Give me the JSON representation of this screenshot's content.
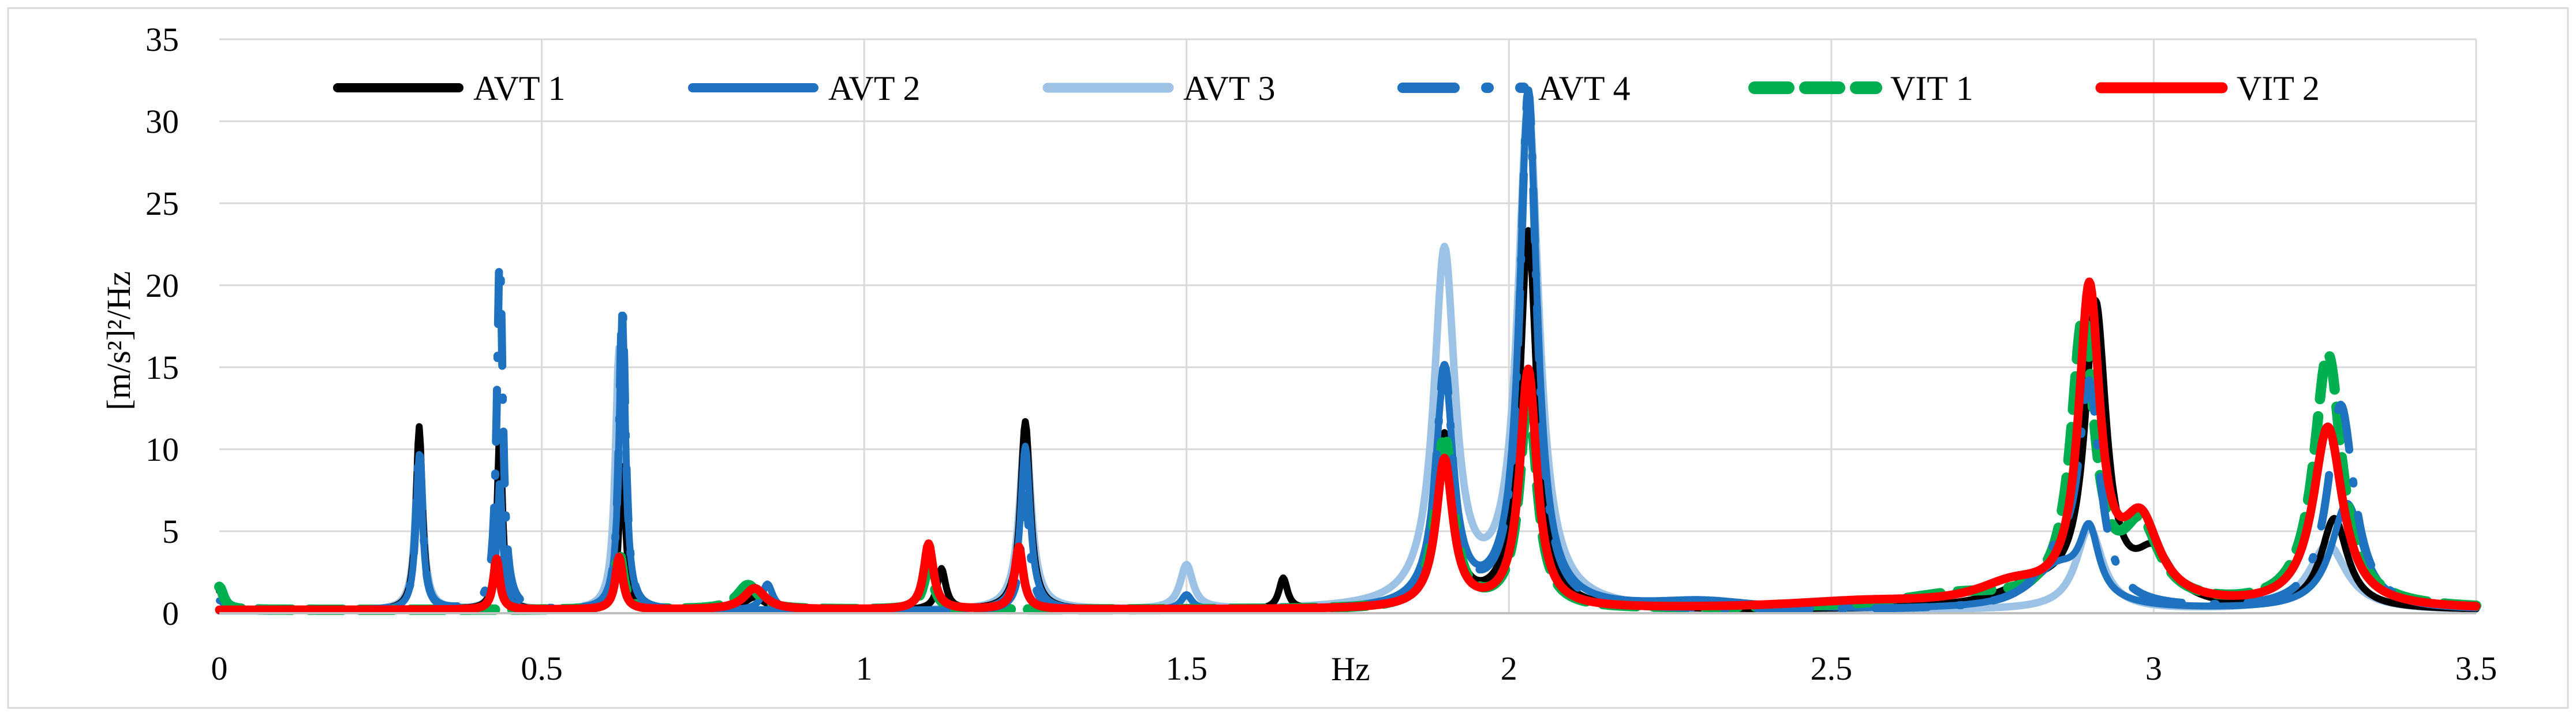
{
  "chart_data": {
    "type": "line",
    "title": "",
    "xlabel": "Hz",
    "ylabel": "[m/s²]²/Hz",
    "xlim": [
      0,
      3.5
    ],
    "ylim": [
      0,
      35
    ],
    "x_ticks": [
      0,
      0.5,
      1,
      1.5,
      2,
      2.5,
      3,
      3.5
    ],
    "x_tick_labels": [
      "0",
      "0.5",
      "1",
      "1.5",
      "2",
      "2.5",
      "3",
      "3.5"
    ],
    "y_ticks": [
      0,
      5,
      10,
      15,
      20,
      25,
      30,
      35
    ],
    "y_tick_labels": [
      "0",
      "5",
      "10",
      "15",
      "20",
      "25",
      "30",
      "35"
    ],
    "grid": true,
    "legend_position": "top",
    "series": [
      {
        "name": "AVT 1",
        "color": "#000000",
        "style": "solid",
        "baseline": 0.15,
        "peaks": [
          [
            0.0,
            1.2,
            0.01
          ],
          [
            0.31,
            11.2,
            0.006
          ],
          [
            0.435,
            11,
            0.005
          ],
          [
            0.625,
            9,
            0.006
          ],
          [
            0.83,
            0.8,
            0.02
          ],
          [
            1.12,
            2.5,
            0.008
          ],
          [
            1.25,
            11.5,
            0.009
          ],
          [
            1.65,
            1.9,
            0.008
          ],
          [
            1.9,
            10.5,
            0.016
          ],
          [
            2.03,
            23,
            0.016
          ],
          [
            2.82,
            1.3,
            0.07
          ],
          [
            2.91,
            18,
            0.02
          ],
          [
            3.0,
            3.0,
            0.035
          ],
          [
            3.28,
            5.5,
            0.025
          ]
        ]
      },
      {
        "name": "AVT 2",
        "color": "#1f72c0",
        "style": "solid",
        "baseline": 0.15,
        "peaks": [
          [
            0.0,
            0.6,
            0.01
          ],
          [
            0.31,
            9.5,
            0.006
          ],
          [
            0.435,
            8,
            0.005
          ],
          [
            0.625,
            18.5,
            0.006
          ],
          [
            0.85,
            1.6,
            0.01
          ],
          [
            1.25,
            10,
            0.009
          ],
          [
            1.5,
            0.9,
            0.01
          ],
          [
            1.9,
            14,
            0.017
          ],
          [
            2.03,
            31,
            0.017
          ],
          [
            2.3,
            0.5,
            0.1
          ],
          [
            2.85,
            2.5,
            0.05
          ],
          [
            2.9,
            4,
            0.018
          ],
          [
            3.3,
            6.5,
            0.03
          ]
        ]
      },
      {
        "name": "AVT 3",
        "color": "#9cc3e6",
        "style": "solid",
        "baseline": 0.15,
        "peaks": [
          [
            0.31,
            10,
            0.007
          ],
          [
            0.435,
            8,
            0.006
          ],
          [
            0.62,
            16,
            0.007
          ],
          [
            1.25,
            11,
            0.011
          ],
          [
            1.5,
            2.7,
            0.012
          ],
          [
            1.9,
            21.5,
            0.02
          ],
          [
            2.03,
            30.5,
            0.02
          ],
          [
            2.9,
            5,
            0.025
          ],
          [
            3.27,
            4,
            0.035
          ]
        ]
      },
      {
        "name": "AVT 4",
        "color": "#1f72c0",
        "style": "dashdot",
        "baseline": 0.15,
        "peaks": [
          [
            0.31,
            10,
            0.006
          ],
          [
            0.435,
            22,
            0.0055
          ],
          [
            0.625,
            18.8,
            0.006
          ],
          [
            1.25,
            7,
            0.008
          ],
          [
            1.9,
            14.5,
            0.016
          ],
          [
            2.03,
            31.5,
            0.016
          ],
          [
            2.85,
            2.5,
            0.04
          ],
          [
            2.9,
            13,
            0.02
          ],
          [
            3.29,
            12.5,
            0.025
          ]
        ]
      },
      {
        "name": "VIT 1",
        "color": "#00b050",
        "style": "dashed",
        "baseline": 0.2,
        "peaks": [
          [
            0.0,
            1.4,
            0.008
          ],
          [
            0.62,
            3.5,
            0.008
          ],
          [
            0.82,
            1.5,
            0.02
          ],
          [
            1.1,
            2.5,
            0.01
          ],
          [
            1.9,
            10.5,
            0.016
          ],
          [
            2.03,
            13,
            0.016
          ],
          [
            2.7,
            0.8,
            0.12
          ],
          [
            2.89,
            17,
            0.022
          ],
          [
            2.98,
            4.5,
            0.035
          ],
          [
            3.27,
            15.5,
            0.026
          ]
        ]
      },
      {
        "name": "VIT 2",
        "color": "#ff0000",
        "style": "solid",
        "baseline": 0.2,
        "peaks": [
          [
            0.43,
            3.1,
            0.006
          ],
          [
            0.62,
            3.2,
            0.007
          ],
          [
            0.83,
            1.3,
            0.02
          ],
          [
            1.1,
            4.0,
            0.009
          ],
          [
            1.24,
            3.8,
            0.008
          ],
          [
            1.9,
            9,
            0.016
          ],
          [
            2.03,
            14.5,
            0.016
          ],
          [
            2.55,
            0.4,
            0.15
          ],
          [
            2.78,
            1.2,
            0.07
          ],
          [
            2.9,
            18.8,
            0.02
          ],
          [
            2.98,
            4.8,
            0.035
          ],
          [
            3.27,
            11,
            0.028
          ]
        ]
      }
    ]
  }
}
